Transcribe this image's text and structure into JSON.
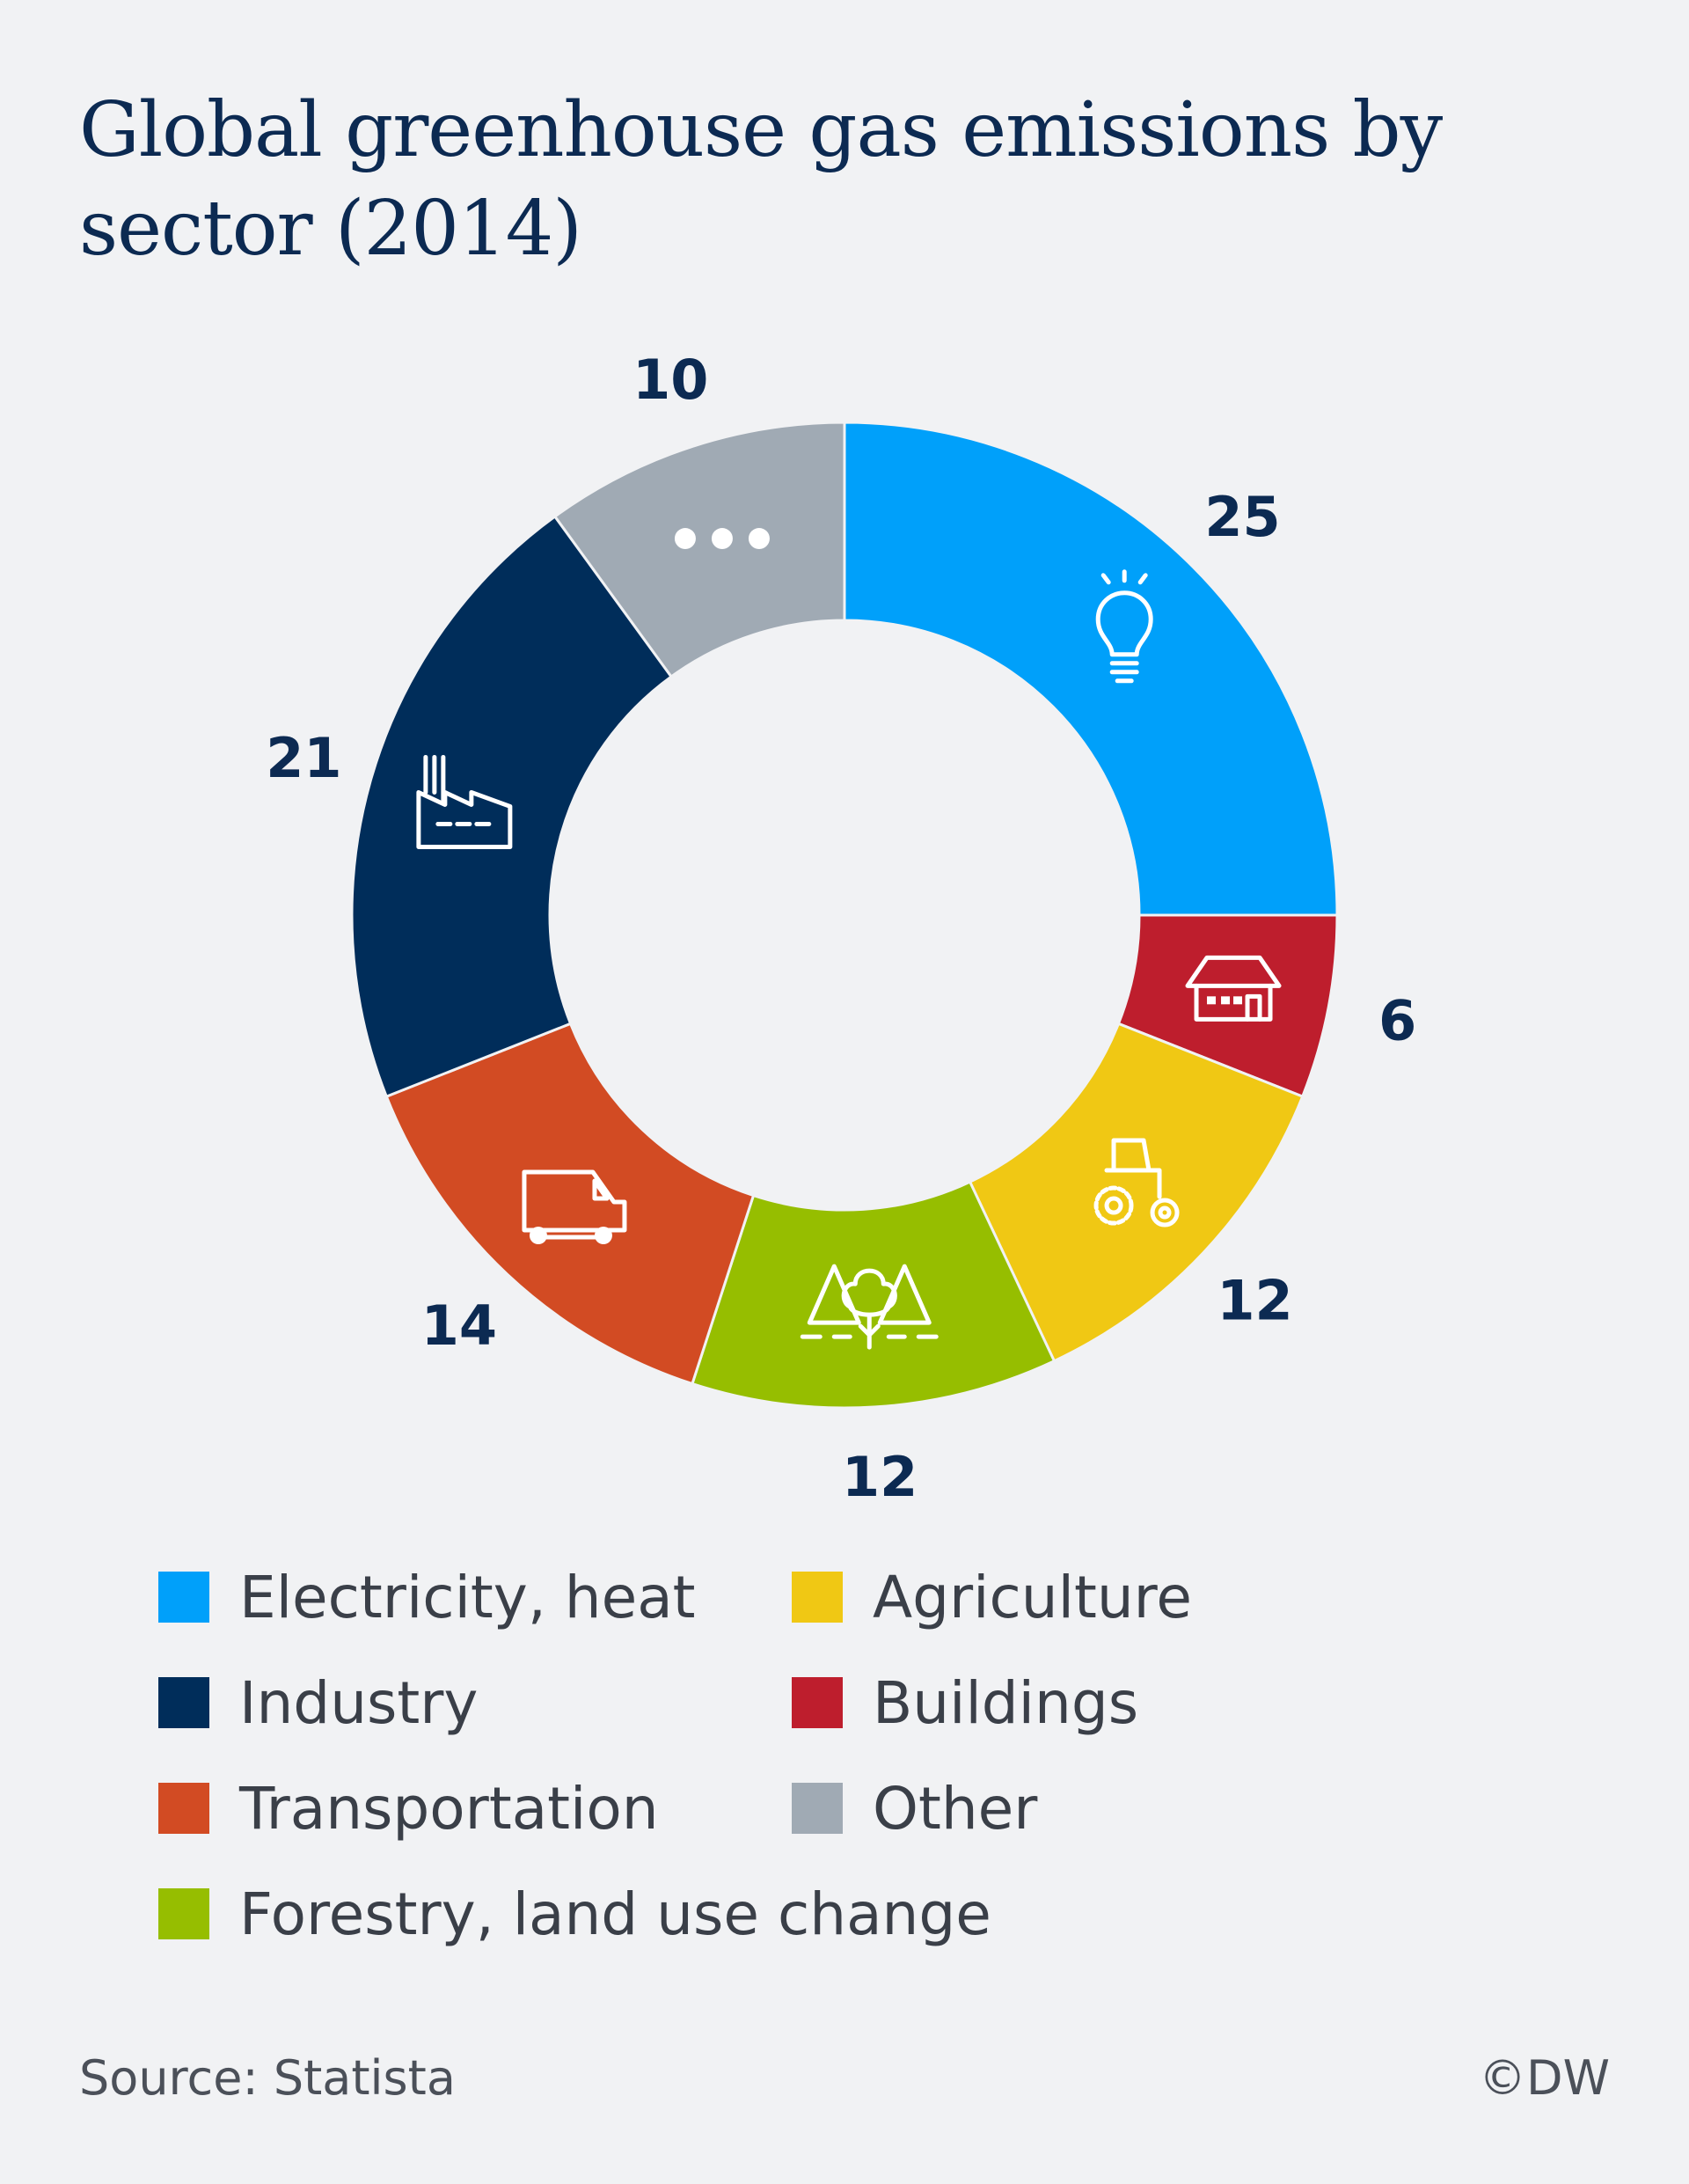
{
  "header": {
    "title": "Global greenhouse gas emissions by sector (2014)"
  },
  "chart_data": {
    "type": "pie",
    "variant": "donut",
    "title": "Global greenhouse gas emissions by sector (2014)",
    "unit": "%",
    "slices": [
      {
        "label": "Electricity, heat",
        "value": 25,
        "display": "25",
        "color": "#00a0fa",
        "icon": "lightbulb-icon"
      },
      {
        "label": "Buildings",
        "value": 6,
        "display": "6",
        "color": "#be1e2d",
        "icon": "house-icon"
      },
      {
        "label": "Agriculture",
        "value": 12,
        "display": "12",
        "color": "#f0c814",
        "icon": "tractor-icon"
      },
      {
        "label": "Forestry, land use change",
        "value": 12,
        "display": "12",
        "color": "#96be00",
        "icon": "trees-icon"
      },
      {
        "label": "Transportation",
        "value": 14,
        "display": "14",
        "color": "#d24b23",
        "icon": "van-icon"
      },
      {
        "label": "Industry",
        "value": 21,
        "display": "21",
        "color": "#002d5a",
        "icon": "factory-icon"
      },
      {
        "label": "Other",
        "value": 10,
        "display": "10",
        "color": "#a0aab4",
        "icon": "more-dots-icon"
      }
    ],
    "legend_position": "bottom"
  },
  "legend": {
    "items": [
      {
        "label": "Electricity, heat",
        "color": "#00a0fa"
      },
      {
        "label": "Industry",
        "color": "#002d5a"
      },
      {
        "label": "Transportation",
        "color": "#d24b23"
      },
      {
        "label": "Forestry, land use change",
        "color": "#96be00"
      },
      {
        "label": "Agriculture",
        "color": "#f0c814"
      },
      {
        "label": "Buildings",
        "color": "#be1e2d"
      },
      {
        "label": "Other",
        "color": "#a0aab4"
      }
    ]
  },
  "footer": {
    "source": "Source: Statista",
    "copyright": "©DW"
  }
}
